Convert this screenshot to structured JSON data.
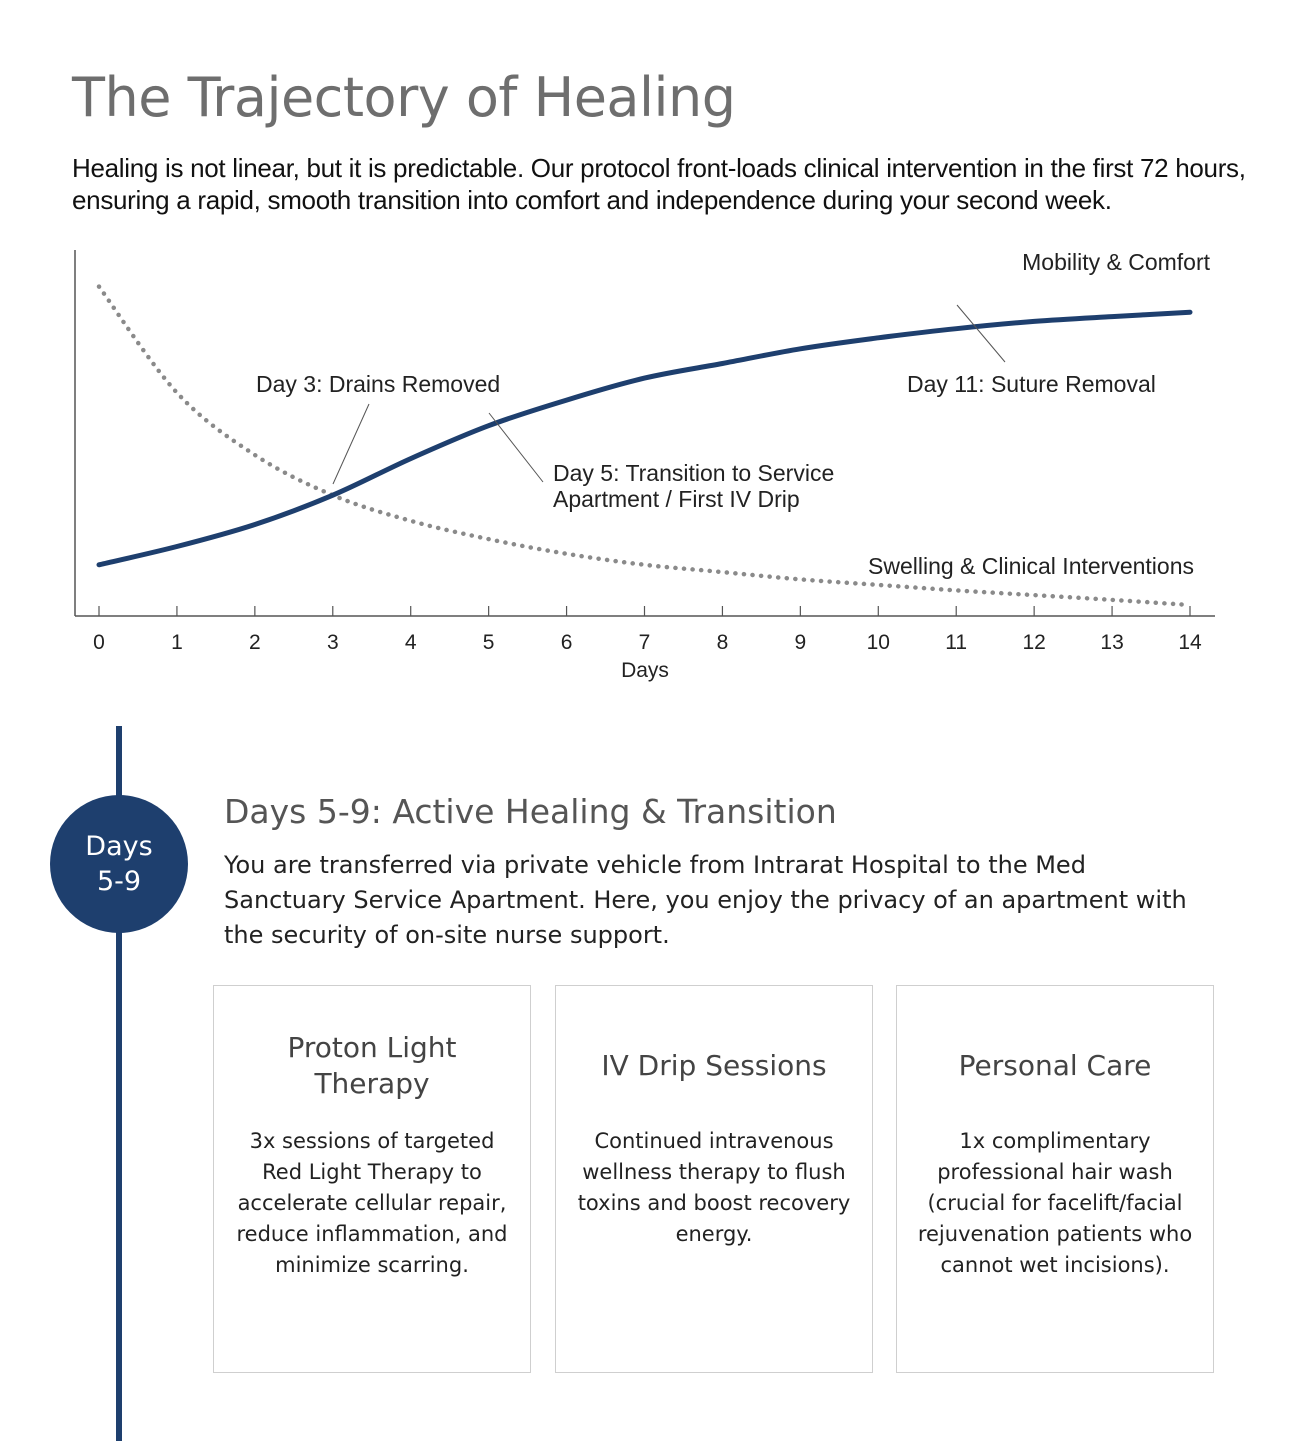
{
  "page": {
    "title": "The Trajectory of Healing",
    "intro": "Healing is not linear, but it is predictable. Our protocol front-loads clinical intervention in the first 72 hours, ensuring a rapid, smooth transition into comfort and independence during your second week."
  },
  "chart_data": {
    "type": "line",
    "xlabel": "Days",
    "ylabel": "",
    "xlim": [
      0,
      14
    ],
    "ylim": [
      0,
      100
    ],
    "grid": false,
    "x_ticks": [
      0,
      1,
      2,
      3,
      4,
      5,
      6,
      7,
      8,
      9,
      10,
      11,
      12,
      13,
      14
    ],
    "series": [
      {
        "name": "Mobility & Comfort",
        "style": "solid",
        "color": "#1e3f6e",
        "x": [
          0,
          1,
          2,
          3,
          4,
          5,
          6,
          7,
          8,
          9,
          10,
          11,
          12,
          13,
          14
        ],
        "y": [
          14,
          19,
          25,
          33,
          43,
          52,
          59,
          65,
          69,
          73,
          76,
          78.5,
          80.5,
          81.8,
          83
        ]
      },
      {
        "name": "Swelling & Clinical Interventions",
        "style": "dotted",
        "color": "#8a8a8a",
        "x": [
          0,
          1,
          2,
          3,
          4,
          5,
          6,
          7,
          8,
          9,
          10,
          11,
          12,
          13,
          14
        ],
        "y": [
          90,
          61,
          44,
          33,
          26,
          21,
          17,
          14,
          12,
          10,
          8.5,
          7,
          5.7,
          4.4,
          3
        ]
      }
    ],
    "annotations": [
      {
        "id": "drains",
        "lines": [
          "Day 3: Drains Removed"
        ],
        "x": 3
      },
      {
        "id": "transition",
        "lines": [
          "Day 5: Transition to Service",
          "Apartment / First IV Drip"
        ],
        "x": 5
      },
      {
        "id": "suture",
        "lines": [
          "Day 11: Suture Removal"
        ],
        "x": 11
      }
    ]
  },
  "section": {
    "badge_line1": "Days",
    "badge_line2": "5-9",
    "title": "Days 5-9: Active Healing & Transition",
    "body": "You are transferred via private vehicle from Intrarat Hospital to the Med Sanctuary Service Apartment. Here, you enjoy the privacy of an apartment with the security of on-site nurse support.",
    "accent_color": "#1e3f6e"
  },
  "cards": [
    {
      "title": "Proton Light Therapy",
      "body": "3x sessions of targeted Red Light Therapy to accelerate cellular repair, reduce inflammation, and minimize scarring."
    },
    {
      "title": "IV Drip Sessions",
      "body": "Continued intravenous wellness therapy to flush toxins and boost recovery energy."
    },
    {
      "title": "Personal Care",
      "body": "1x complimentary professional hair wash (crucial for facelift/facial rejuvenation patients who cannot wet incisions)."
    }
  ]
}
